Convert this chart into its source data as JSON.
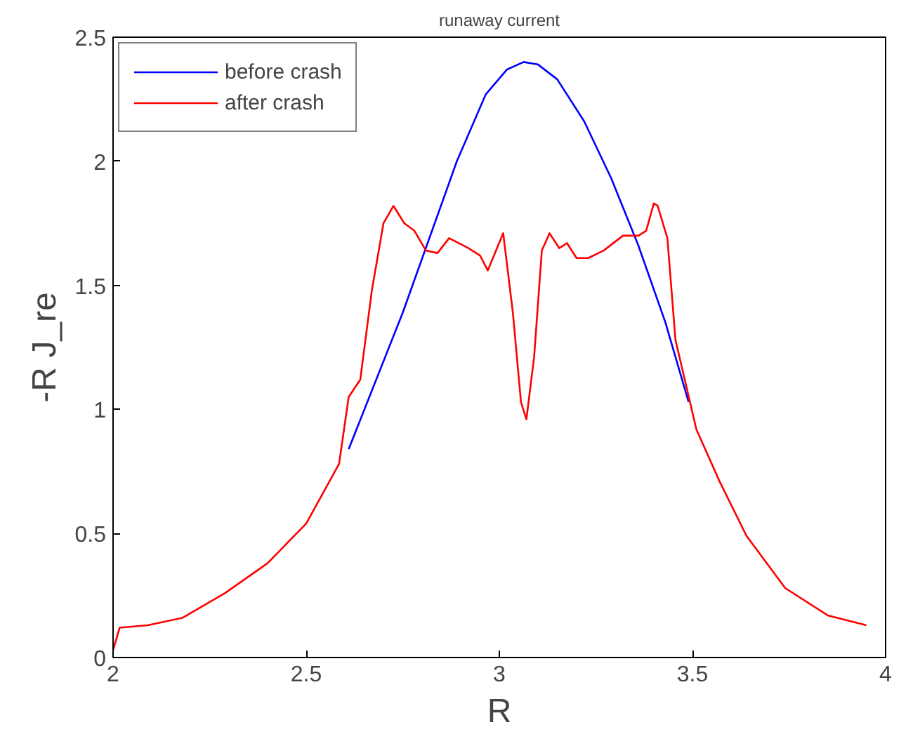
{
  "chart_data": {
    "type": "line",
    "title": "runaway current",
    "xlabel": "R",
    "ylabel": "-R J_re",
    "xlim": [
      2,
      4
    ],
    "ylim": [
      0,
      2.5
    ],
    "xticks": [
      2,
      2.5,
      3,
      3.5,
      4
    ],
    "yticks": [
      0,
      0.5,
      1,
      1.5,
      2,
      2.5
    ],
    "grid": false,
    "legend": "top left",
    "marker": "none",
    "line_style": "solid",
    "series": [
      {
        "name": "before crash",
        "color": "#0000ff",
        "x": [
          2.61,
          2.75,
          2.89,
          2.965,
          3.02,
          3.063,
          3.1,
          3.15,
          3.22,
          3.29,
          3.36,
          3.43,
          3.49
        ],
        "values": [
          0.84,
          1.39,
          2.0,
          2.27,
          2.37,
          2.4,
          2.39,
          2.33,
          2.16,
          1.93,
          1.66,
          1.35,
          1.03
        ]
      },
      {
        "name": "after crash",
        "color": "#ff0000",
        "x": [
          2.0,
          2.017,
          2.09,
          2.18,
          2.29,
          2.4,
          2.5,
          2.585,
          2.61,
          2.64,
          2.67,
          2.7,
          2.726,
          2.754,
          2.78,
          2.81,
          2.84,
          2.87,
          2.92,
          2.95,
          2.97,
          3.01,
          3.035,
          3.056,
          3.07,
          3.09,
          3.11,
          3.13,
          3.155,
          3.175,
          3.2,
          3.23,
          3.27,
          3.32,
          3.36,
          3.38,
          3.4,
          3.41,
          3.435,
          3.456,
          3.48,
          3.51,
          3.57,
          3.64,
          3.74,
          3.85,
          3.95
        ],
        "values": [
          0.03,
          0.12,
          0.13,
          0.16,
          0.26,
          0.38,
          0.54,
          0.78,
          1.05,
          1.12,
          1.48,
          1.75,
          1.82,
          1.75,
          1.72,
          1.64,
          1.63,
          1.69,
          1.65,
          1.62,
          1.56,
          1.71,
          1.39,
          1.03,
          0.96,
          1.21,
          1.64,
          1.71,
          1.65,
          1.67,
          1.61,
          1.61,
          1.64,
          1.7,
          1.7,
          1.72,
          1.83,
          1.82,
          1.69,
          1.28,
          1.12,
          0.92,
          0.71,
          0.49,
          0.28,
          0.17,
          0.13
        ]
      }
    ]
  }
}
